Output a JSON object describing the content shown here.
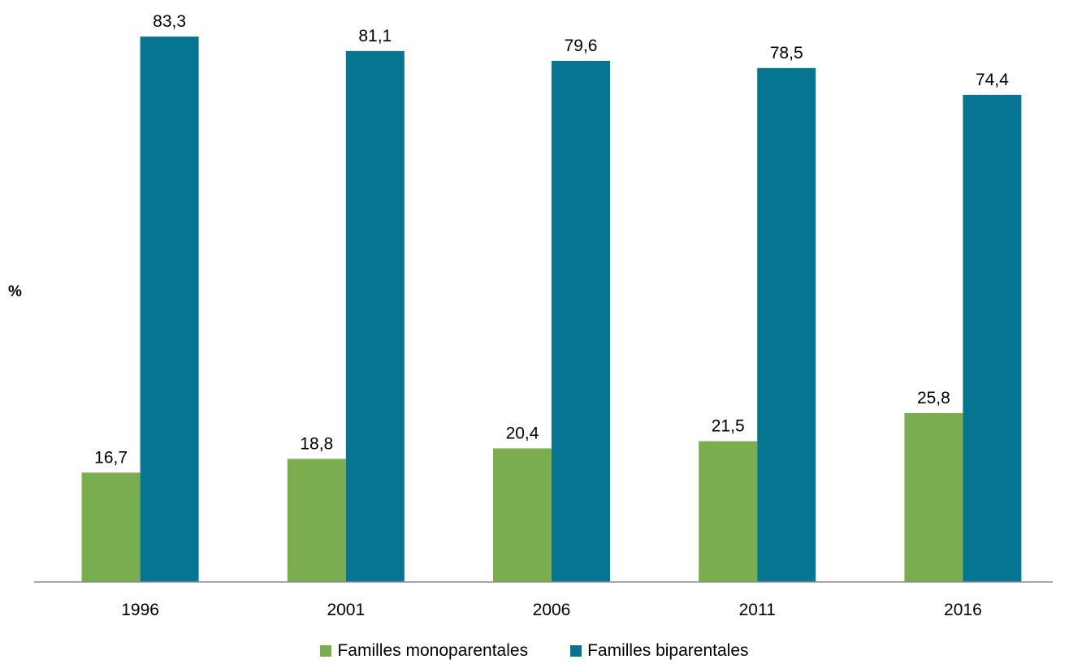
{
  "chart_data": {
    "type": "bar",
    "title": "",
    "xlabel": "",
    "ylabel": "%",
    "ylim": [
      0,
      90
    ],
    "grid": false,
    "legend_position": "bottom",
    "categories": [
      "1996",
      "2001",
      "2006",
      "2011",
      "2016"
    ],
    "series": [
      {
        "name": "Familles monoparentales",
        "color": "#79ad4e",
        "values": [
          16.7,
          18.8,
          20.4,
          21.5,
          25.8
        ],
        "labels": [
          "16,7",
          "18,8",
          "20,4",
          "21,5",
          "25,8"
        ]
      },
      {
        "name": "Familles biparentales",
        "color": "#057592",
        "values": [
          83.3,
          81.1,
          79.6,
          78.5,
          74.4
        ],
        "labels": [
          "83,3",
          "81,1",
          "79,6",
          "78,5",
          "74,4"
        ]
      }
    ]
  }
}
